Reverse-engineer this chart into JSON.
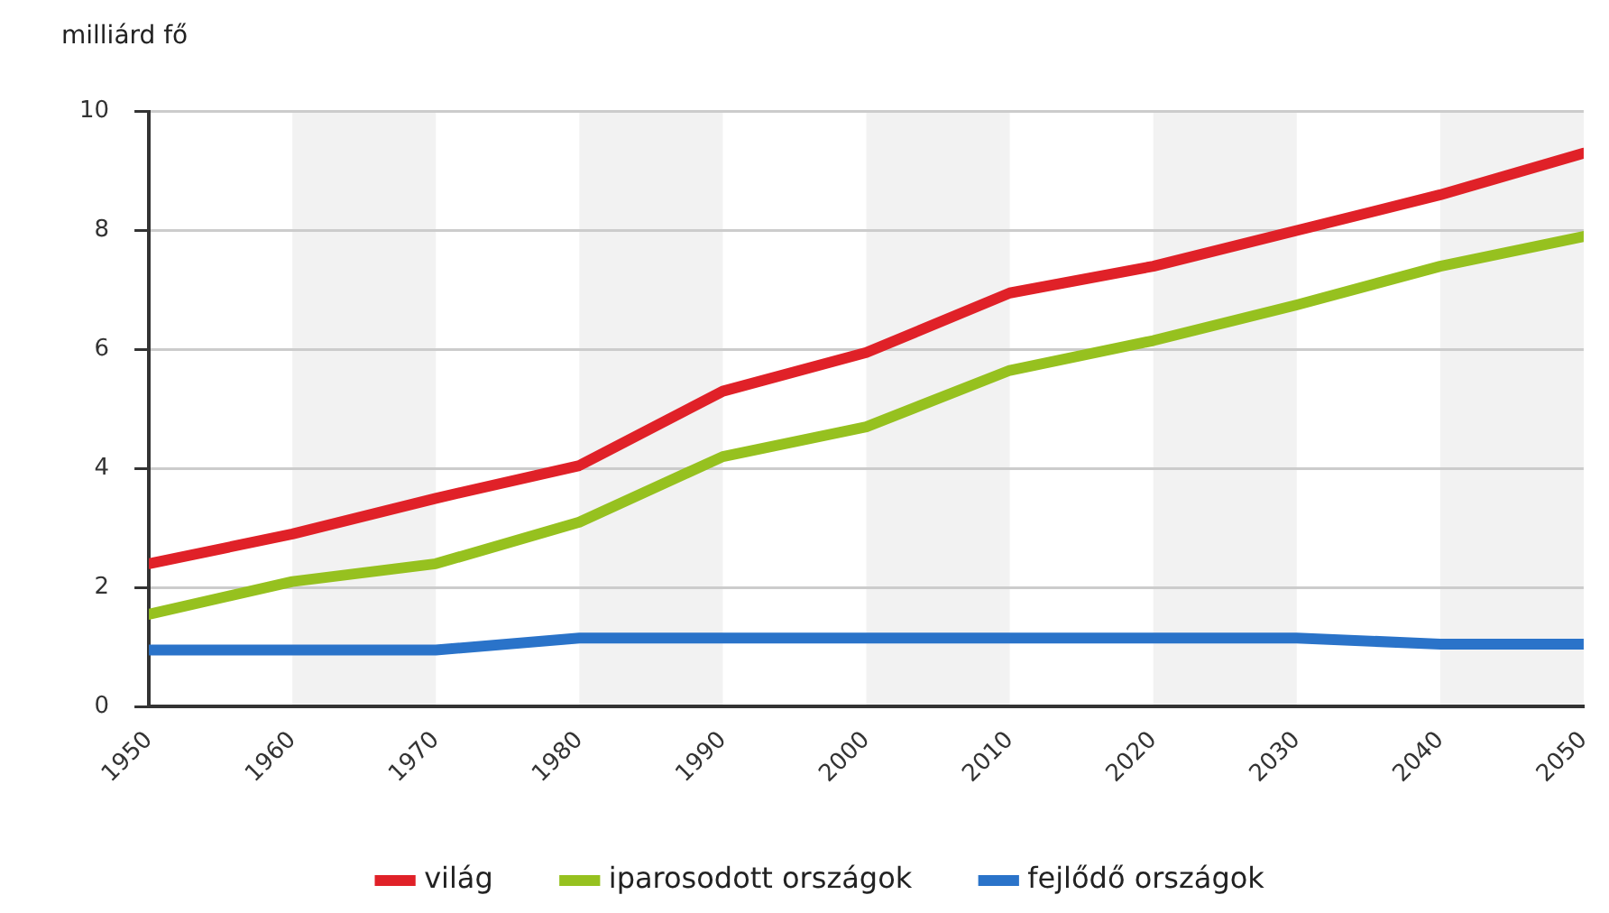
{
  "chart_data": {
    "type": "line",
    "ylabel": "milliárd fő",
    "x": [
      1950,
      1960,
      1970,
      1980,
      1990,
      2000,
      2010,
      2020,
      2030,
      2040,
      2050
    ],
    "series": [
      {
        "name": "világ",
        "color": "#e02128",
        "values": [
          2.4,
          2.9,
          3.5,
          4.05,
          5.3,
          5.95,
          6.95,
          7.4,
          8.0,
          8.6,
          9.3
        ]
      },
      {
        "name": "iparosodott országok",
        "color": "#96c11f",
        "values": [
          1.55,
          2.1,
          2.4,
          3.1,
          4.2,
          4.7,
          5.65,
          6.15,
          6.75,
          7.4,
          7.9
        ]
      },
      {
        "name": "fejlődő országok",
        "color": "#2a73c9",
        "values": [
          0.95,
          0.95,
          0.95,
          1.15,
          1.15,
          1.15,
          1.15,
          1.15,
          1.15,
          1.05,
          1.05
        ]
      }
    ],
    "xlim": [
      1950,
      2050
    ],
    "xticks": [
      1950,
      1960,
      1970,
      1980,
      1990,
      2000,
      2010,
      2020,
      2030,
      2040,
      2050
    ],
    "ylim": [
      0,
      10
    ],
    "yticks": [
      0,
      2,
      4,
      6,
      8,
      10
    ],
    "bands": [
      {
        "axis": "x",
        "from": 1960,
        "to": 1970,
        "color": "#f2f2f2"
      },
      {
        "axis": "x",
        "from": 1980,
        "to": 1990,
        "color": "#f2f2f2"
      },
      {
        "axis": "x",
        "from": 2000,
        "to": 2010,
        "color": "#f2f2f2"
      },
      {
        "axis": "x",
        "from": 2020,
        "to": 2030,
        "color": "#f2f2f2"
      },
      {
        "axis": "x",
        "from": 2040,
        "to": 2050,
        "color": "#f2f2f2"
      }
    ],
    "grid": "y",
    "legend": "bottom",
    "marker": "none",
    "line_style": "solid"
  }
}
